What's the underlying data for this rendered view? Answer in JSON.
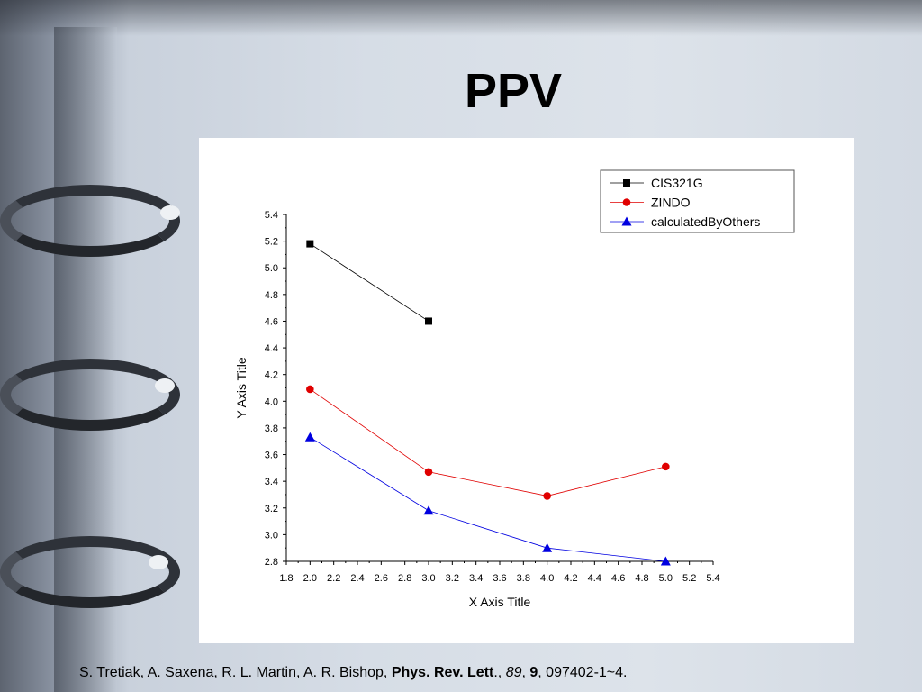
{
  "slide": {
    "title": "PPV"
  },
  "citation": {
    "authors": "S. Tretiak, A. Saxena, R. L. Martin, A. R. Bishop, ",
    "journal": "Phys. Rev. Lett",
    "sep1": "., ",
    "volume": "89",
    "sep2": ", ",
    "issue": "9",
    "pages": ", 097402-1~4."
  },
  "chart_data": {
    "type": "line",
    "xlabel": "X Axis Title",
    "ylabel": "Y Axis Title",
    "xlim": [
      1.8,
      5.4
    ],
    "ylim": [
      2.8,
      5.4
    ],
    "x_ticks": [
      "1.8",
      "2.0",
      "2.2",
      "2.4",
      "2.6",
      "2.8",
      "3.0",
      "3.2",
      "3.4",
      "3.6",
      "3.8",
      "4.0",
      "4.2",
      "4.4",
      "4.6",
      "4.8",
      "5.0",
      "5.2",
      "5.4"
    ],
    "y_ticks": [
      "2.8",
      "3.0",
      "3.2",
      "3.4",
      "3.6",
      "3.8",
      "4.0",
      "4.2",
      "4.4",
      "4.6",
      "4.8",
      "5.0",
      "5.2",
      "5.4"
    ],
    "grid": false,
    "legend_position": "top-right",
    "series": [
      {
        "name": "CIS321G",
        "color": "#000000",
        "marker": "square",
        "x": [
          2.0,
          3.0
        ],
        "y": [
          5.18,
          4.6
        ]
      },
      {
        "name": "ZINDO",
        "color": "#e00000",
        "marker": "circle",
        "x": [
          2.0,
          3.0,
          4.0,
          5.0
        ],
        "y": [
          4.09,
          3.47,
          3.29,
          3.51
        ]
      },
      {
        "name": "calculatedByOthers",
        "color": "#0000e0",
        "marker": "triangle",
        "x": [
          2.0,
          3.0,
          4.0,
          5.0
        ],
        "y": [
          3.73,
          3.18,
          2.9,
          2.8
        ]
      }
    ]
  }
}
